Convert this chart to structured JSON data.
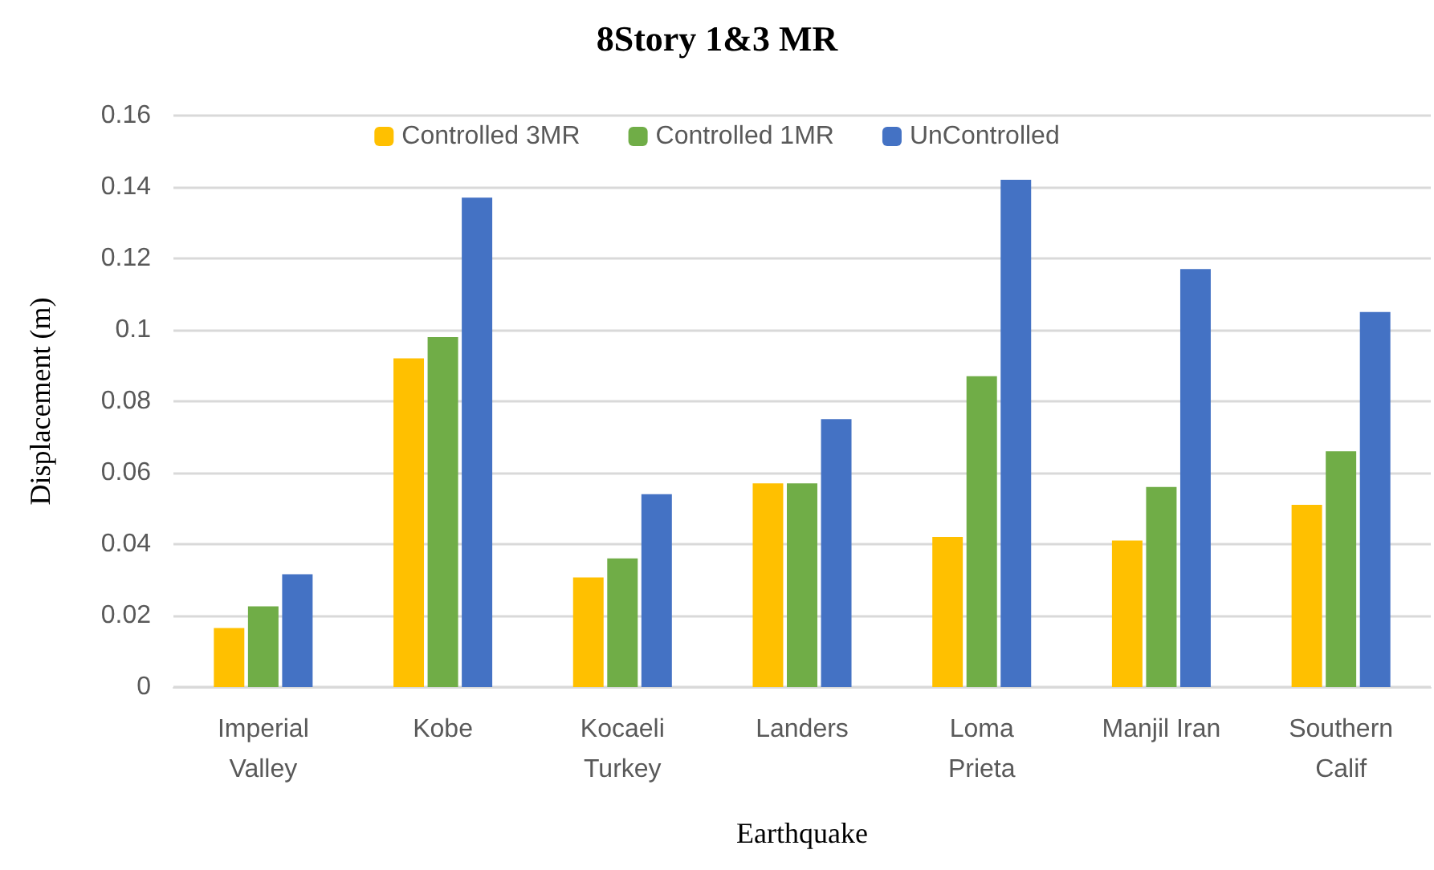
{
  "chart_data": {
    "type": "bar",
    "title": "8Story 1&3 MR",
    "xlabel": "Earthquake",
    "ylabel": "Displacement (m)",
    "categories": [
      "Imperial\nValley",
      "Kobe",
      "Kocaeli\nTurkey",
      "Landers",
      "Loma\nPrieta",
      "Manjil Iran",
      "Southern\nCalif"
    ],
    "series": [
      {
        "name": "Controlled 3MR",
        "color": "#ffc000",
        "values": [
          0.0165,
          0.092,
          0.0307,
          0.057,
          0.042,
          0.041,
          0.051
        ]
      },
      {
        "name": "Controlled 1MR",
        "color": "#70ad47",
        "values": [
          0.0226,
          0.098,
          0.036,
          0.057,
          0.087,
          0.056,
          0.066
        ]
      },
      {
        "name": "UnControlled",
        "color": "#4472c4",
        "values": [
          0.0316,
          0.137,
          0.054,
          0.075,
          0.142,
          0.117,
          0.105
        ]
      }
    ],
    "ylim": [
      0,
      0.16
    ],
    "yticks": [
      0,
      0.02,
      0.04,
      0.06,
      0.08,
      0.1,
      0.12,
      0.14,
      0.16
    ],
    "grid": "y",
    "legend": "top"
  }
}
